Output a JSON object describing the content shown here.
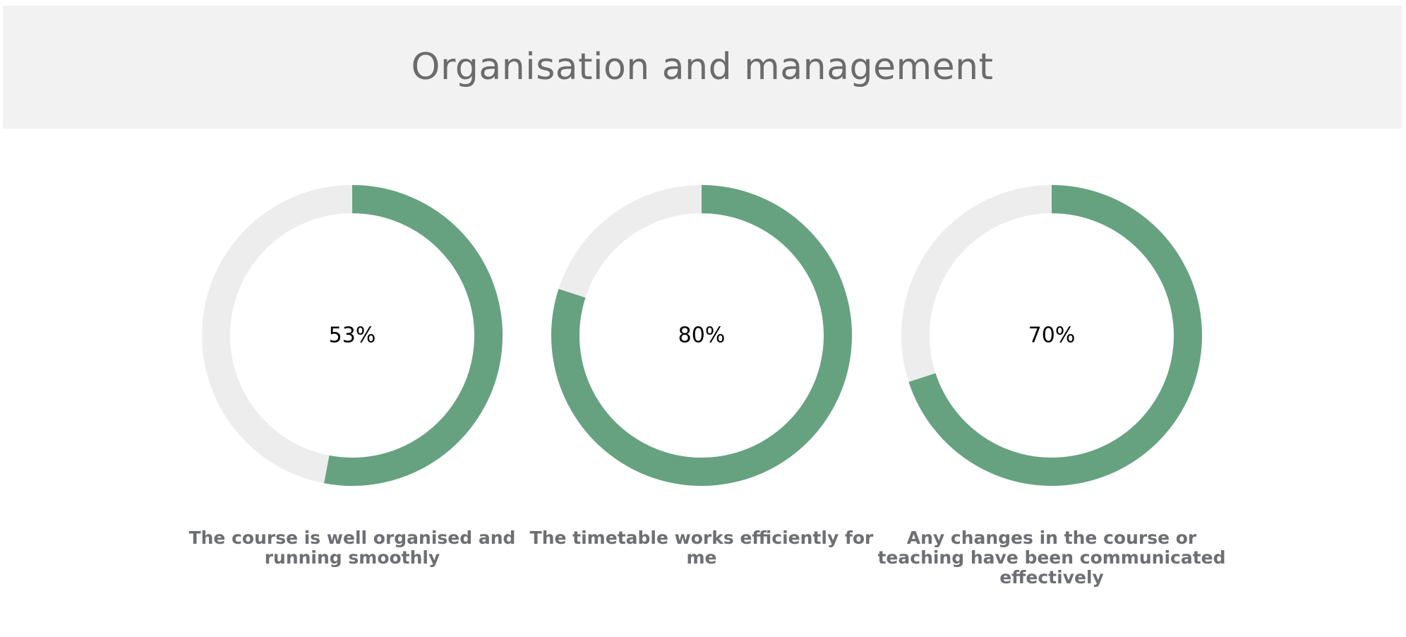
{
  "header": {
    "title": "Organisation and management"
  },
  "colors": {
    "filled": "#66a280",
    "track": "#ededed",
    "value_text": "#000000",
    "header_bg": "#f2f2f2"
  },
  "chart_data": [
    {
      "type": "pie",
      "value": 53,
      "display": "53%",
      "label": "The course is well organised and running smoothly"
    },
    {
      "type": "pie",
      "value": 80,
      "display": "80%",
      "label": "The timetable works efficiently for me"
    },
    {
      "type": "pie",
      "value": 70,
      "display": "70%",
      "label": "Any changes in the course or teaching have been communicated effectively"
    }
  ]
}
